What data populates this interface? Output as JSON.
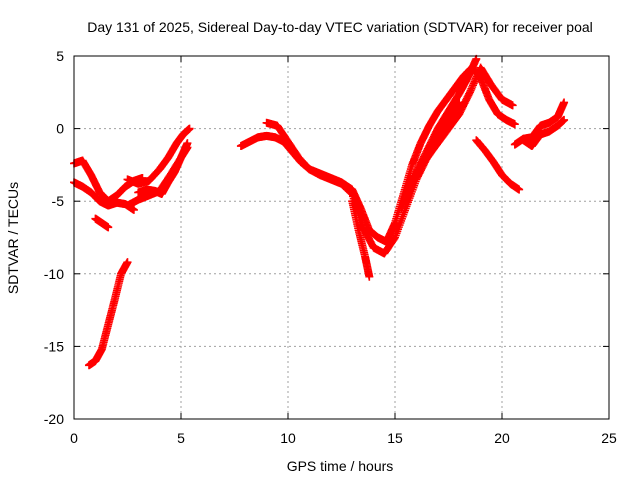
{
  "chart_data": {
    "type": "scatter",
    "title": "Day 131 of 2025, Sidereal Day-to-day VTEC variation (SDTVAR) for receiver poal",
    "xlabel": "GPS time / hours",
    "ylabel": "SDTVAR / TECUs",
    "xlim": [
      0,
      25
    ],
    "ylim": [
      -20,
      5
    ],
    "xticks": [
      0,
      5,
      10,
      15,
      20,
      25
    ],
    "xtick_labels": [
      "0",
      "5",
      "10",
      "15",
      "20",
      "25"
    ],
    "yticks": [
      -20,
      -15,
      -10,
      -5,
      0,
      5
    ],
    "ytick_labels": [
      "-20",
      "-15",
      "-10",
      "-5",
      "0",
      "5"
    ],
    "grid": true,
    "marker": "+",
    "color": "#ff0000",
    "series": [
      {
        "name": "s1",
        "x": [
          0.0,
          0.4,
          0.8,
          1.2,
          1.6,
          2.0,
          2.4,
          2.8,
          3.2
        ],
        "y": [
          -2.4,
          -2.2,
          -3.2,
          -4.4,
          -5.0,
          -4.6,
          -4.0,
          -3.6,
          -3.4
        ]
      },
      {
        "name": "s2",
        "x": [
          0.0,
          0.4,
          0.8,
          1.2,
          1.6,
          2.0,
          2.4,
          2.8
        ],
        "y": [
          -3.7,
          -4.0,
          -4.4,
          -5.0,
          -5.3,
          -5.1,
          -5.2,
          -5.6
        ]
      },
      {
        "name": "s3",
        "x": [
          1.0,
          1.3,
          1.6
        ],
        "y": [
          -6.2,
          -6.5,
          -6.8
        ]
      },
      {
        "name": "s4",
        "x": [
          0.7,
          1.0,
          1.3,
          1.6,
          1.9,
          2.2,
          2.5
        ],
        "y": [
          -16.3,
          -16.0,
          -15.2,
          -13.5,
          -11.8,
          -10.0,
          -9.2
        ]
      },
      {
        "name": "s5",
        "x": [
          3.0,
          3.4,
          3.8,
          4.1,
          4.4,
          4.7,
          5.0,
          5.3
        ],
        "y": [
          -4.4,
          -4.2,
          -4.3,
          -4.5,
          -3.7,
          -3.0,
          -2.0,
          -1.0
        ]
      },
      {
        "name": "s6",
        "x": [
          2.5,
          3.0,
          3.5,
          4.0,
          4.4,
          4.8,
          5.1,
          5.4
        ],
        "y": [
          -3.5,
          -3.8,
          -3.6,
          -2.8,
          -2.0,
          -1.0,
          -0.4,
          0.0
        ]
      },
      {
        "name": "s7",
        "x": [
          2.5,
          3.0,
          3.5,
          4.0,
          4.5,
          5.0,
          5.3
        ],
        "y": [
          -5.3,
          -4.9,
          -4.6,
          -4.3,
          -3.2,
          -2.0,
          -1.3
        ]
      },
      {
        "name": "s8",
        "x": [
          7.8,
          8.2,
          8.6,
          9.0,
          9.4,
          9.8,
          10.2,
          10.6,
          11.0,
          11.5,
          12.0,
          12.5,
          13.0,
          13.4,
          13.8,
          14.2,
          14.6,
          15.0,
          15.4,
          15.8,
          16.2,
          16.6,
          17.0,
          17.4,
          17.8,
          18.2,
          18.6,
          19.0,
          19.4,
          19.8,
          20.2,
          20.6
        ],
        "y": [
          -1.2,
          -0.9,
          -0.6,
          -0.5,
          -0.6,
          -0.9,
          -1.6,
          -2.3,
          -2.8,
          -3.1,
          -3.4,
          -3.7,
          -4.2,
          -5.5,
          -7.0,
          -7.5,
          -7.8,
          -6.5,
          -4.5,
          -2.5,
          -1.0,
          0.2,
          1.2,
          2.0,
          2.8,
          3.6,
          4.2,
          3.5,
          2.0,
          1.0,
          0.6,
          0.3
        ]
      },
      {
        "name": "s9",
        "x": [
          9.0,
          9.5,
          10.0,
          10.5,
          11.0,
          11.5,
          12.0,
          12.5,
          13.0,
          13.5,
          14.0,
          14.5,
          15.0,
          15.5,
          16.0,
          16.5,
          17.0,
          17.5,
          18.0,
          18.5,
          19.0,
          19.5,
          20.0,
          20.5
        ],
        "y": [
          0.4,
          0.2,
          -0.9,
          -2.0,
          -2.8,
          -3.2,
          -3.5,
          -3.8,
          -4.5,
          -6.8,
          -8.2,
          -8.6,
          -7.5,
          -5.5,
          -3.5,
          -2.0,
          -1.0,
          0.0,
          1.0,
          2.5,
          4.2,
          3.0,
          2.0,
          1.6
        ]
      },
      {
        "name": "s10",
        "x": [
          13.0,
          13.3,
          13.6,
          13.8
        ],
        "y": [
          -5.0,
          -7.0,
          -8.8,
          -10.2
        ]
      },
      {
        "name": "s11",
        "x": [
          15.5,
          16.0,
          16.5,
          17.0,
          17.5,
          18.0,
          18.4,
          18.8
        ],
        "y": [
          -4.5,
          -3.0,
          -1.5,
          0.0,
          1.2,
          2.4,
          3.5,
          4.8
        ]
      },
      {
        "name": "s12",
        "x": [
          15.3,
          15.8,
          16.2,
          16.6,
          17.0,
          17.5,
          18.0
        ],
        "y": [
          -5.5,
          -3.8,
          -2.6,
          -1.8,
          -0.8,
          0.5,
          1.8
        ]
      },
      {
        "name": "s13",
        "x": [
          18.8,
          19.2,
          19.6,
          20.0,
          20.4,
          20.8
        ],
        "y": [
          -0.8,
          -1.5,
          -2.3,
          -3.2,
          -3.8,
          -4.2
        ]
      },
      {
        "name": "s14",
        "x": [
          20.6,
          21.0,
          21.4,
          21.8,
          22.2,
          22.6,
          22.9
        ],
        "y": [
          -1.1,
          -0.7,
          -0.6,
          0.2,
          0.4,
          0.8,
          1.8
        ]
      },
      {
        "name": "s15",
        "x": [
          21.0,
          21.4,
          21.8,
          22.2,
          22.6,
          22.9
        ],
        "y": [
          -0.8,
          -1.2,
          -0.4,
          -0.2,
          0.2,
          0.6
        ]
      }
    ]
  }
}
